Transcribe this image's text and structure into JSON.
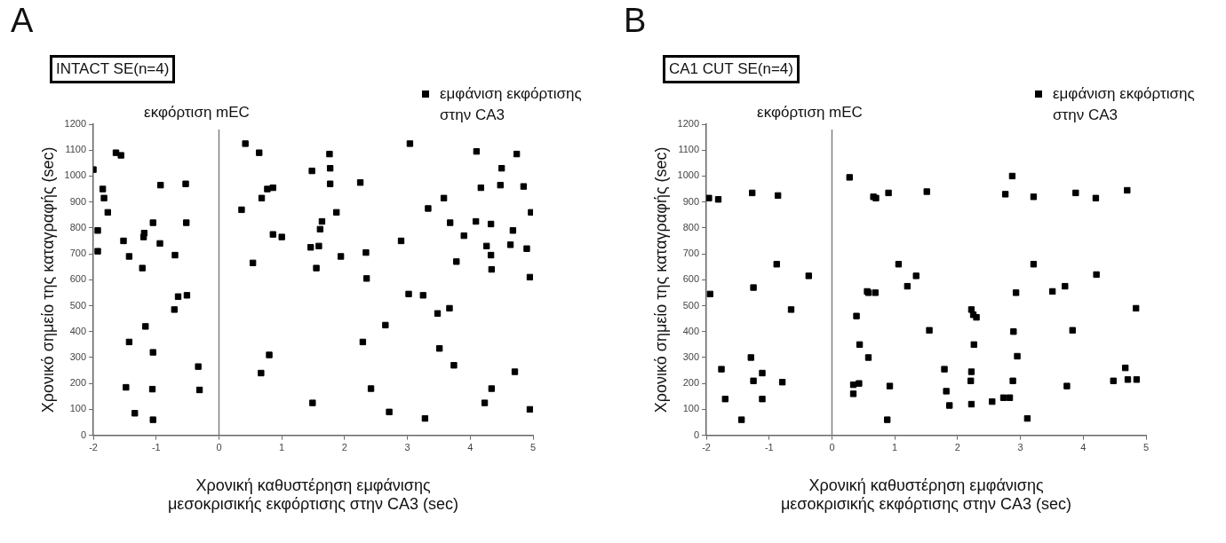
{
  "chart_data": [
    {
      "type": "scatter",
      "title": "A",
      "subtitle": "INTACT SE(n=4)",
      "xlabel": "Χρονική καθυστέρηση εμφάνισης μεσοκρισικής εκφόρτισης στην CA3 (sec)",
      "ylabel": "Χρονικό σημείο της καταγραφής (sec)",
      "xlim": [
        -2,
        5
      ],
      "xticks": [
        -2,
        -1,
        0,
        1,
        2,
        3,
        4,
        5
      ],
      "ylim": [
        0,
        1200
      ],
      "yticks": [
        0,
        100,
        200,
        300,
        400,
        500,
        600,
        700,
        800,
        900,
        1000,
        1100,
        1200
      ],
      "grid": false,
      "legend": "top right",
      "marker": "square",
      "ref_lines": [
        {
          "axis": "x",
          "value": 0,
          "label": "εκφόρτιση mEC",
          "color": "#808080"
        }
      ],
      "series": [
        {
          "name": "εμφάνιση εκφόρτισης στην CA3",
          "color": "#000000",
          "x": [
            -2.0,
            -1.93,
            -1.93,
            -1.85,
            -1.83,
            -1.77,
            -1.64,
            -1.56,
            -1.52,
            -1.43,
            -1.48,
            -1.43,
            -1.34,
            -1.22,
            -1.19,
            -1.2,
            -1.17,
            -1.05,
            -1.05,
            -1.06,
            -1.05,
            -0.94,
            -0.93,
            -0.7,
            -0.71,
            -0.65,
            -0.53,
            -0.52,
            -0.51,
            -0.33,
            -0.31,
            0.36,
            0.42,
            0.64,
            0.54,
            0.68,
            0.77,
            0.86,
            0.86,
            1.0,
            0.8,
            0.67,
            1.48,
            1.76,
            1.77,
            1.77,
            2.25,
            1.87,
            1.64,
            1.61,
            1.46,
            1.59,
            1.94,
            1.55,
            2.34,
            2.35,
            3.04,
            2.9,
            3.58,
            3.33,
            3.68,
            3.9,
            3.78,
            4.1,
            4.5,
            4.74,
            4.17,
            4.48,
            4.85,
            4.97,
            4.09,
            4.33,
            4.68,
            4.26,
            4.33,
            4.64,
            4.9,
            4.34,
            4.95,
            3.02,
            3.25,
            3.48,
            3.67,
            2.65,
            2.29,
            3.51,
            3.74,
            4.71,
            2.42,
            4.34,
            1.49,
            4.23,
            2.71,
            3.28,
            4.95
          ],
          "values": [
            1025,
            790,
            710,
            950,
            915,
            860,
            1090,
            1080,
            750,
            690,
            185,
            360,
            85,
            645,
            780,
            765,
            420,
            820,
            320,
            178,
            60,
            740,
            965,
            695,
            485,
            535,
            970,
            820,
            540,
            265,
            175,
            870,
            1125,
            1090,
            665,
            915,
            950,
            955,
            775,
            765,
            310,
            240,
            1020,
            1085,
            1030,
            970,
            975,
            860,
            825,
            795,
            725,
            730,
            690,
            645,
            705,
            605,
            1125,
            750,
            915,
            875,
            820,
            770,
            670,
            1095,
            1030,
            1085,
            955,
            965,
            960,
            860,
            825,
            815,
            790,
            730,
            695,
            735,
            720,
            640,
            610,
            545,
            540,
            470,
            490,
            425,
            360,
            335,
            270,
            245,
            180,
            180,
            125,
            125,
            90,
            65,
            100
          ]
        }
      ]
    },
    {
      "type": "scatter",
      "title": "B",
      "subtitle": "CA1 CUT SE(n=4)",
      "xlabel": "Χρονική καθυστέρηση εμφάνισης μεσοκρισικής εκφόρτισης στην CA3 (sec)",
      "ylabel": "Χρονικό σημείο της καταγραφής (sec)",
      "xlim": [
        -2,
        5
      ],
      "xticks": [
        -2,
        -1,
        0,
        1,
        2,
        3,
        4,
        5
      ],
      "ylim": [
        0,
        1200
      ],
      "yticks": [
        0,
        100,
        200,
        300,
        400,
        500,
        600,
        700,
        800,
        900,
        1000,
        1100,
        1200
      ],
      "grid": false,
      "legend": "top right",
      "marker": "square",
      "ref_lines": [
        {
          "axis": "x",
          "value": 0,
          "label": "εκφόρτιση mEC",
          "color": "#808080"
        }
      ],
      "series": [
        {
          "name": "εμφάνιση εκφόρτισης στην CA3",
          "color": "#000000",
          "x": [
            -1.96,
            -1.81,
            -1.27,
            -0.86,
            -1.94,
            -1.76,
            -1.7,
            -1.44,
            -1.25,
            -1.29,
            -1.25,
            -1.11,
            -1.11,
            -0.88,
            -0.79,
            -0.65,
            -0.37,
            0.28,
            0.39,
            0.44,
            0.58,
            0.58,
            0.34,
            0.43,
            0.34,
            0.66,
            0.7,
            0.9,
            1.51,
            2.87,
            2.76,
            3.21,
            3.88,
            4.2,
            4.7,
            1.06,
            1.34,
            1.2,
            0.56,
            0.69,
            0.92,
            0.88,
            1.55,
            1.79,
            1.82,
            1.87,
            2.22,
            2.25,
            2.3,
            2.26,
            2.22,
            2.21,
            2.22,
            2.55,
            2.73,
            2.83,
            3.11,
            2.88,
            2.95,
            2.89,
            2.93,
            3.21,
            3.51,
            3.71,
            3.83,
            3.74,
            4.21,
            4.48,
            4.67,
            4.71,
            4.85,
            4.84
          ],
          "values": [
            915,
            910,
            935,
            925,
            545,
            255,
            140,
            60,
            570,
            300,
            210,
            240,
            140,
            660,
            205,
            485,
            615,
            995,
            460,
            350,
            300,
            550,
            195,
            200,
            160,
            920,
            915,
            935,
            940,
            1000,
            930,
            920,
            935,
            915,
            945,
            660,
            615,
            575,
            555,
            550,
            190,
            60,
            405,
            255,
            170,
            115,
            485,
            465,
            455,
            350,
            245,
            210,
            120,
            130,
            145,
            145,
            65,
            210,
            305,
            400,
            550,
            660,
            555,
            575,
            405,
            190,
            620,
            210,
            260,
            215,
            215,
            490
          ]
        }
      ]
    }
  ]
}
